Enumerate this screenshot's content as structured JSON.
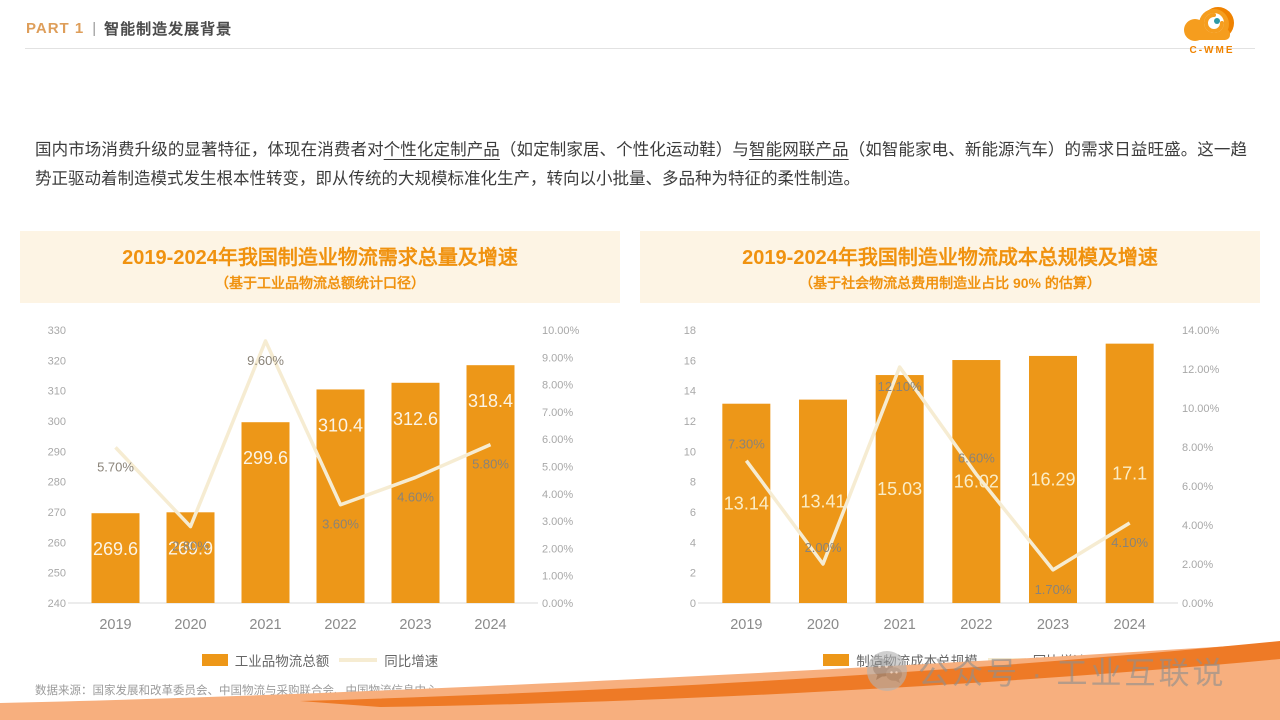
{
  "header": {
    "part_label": "PART 1",
    "divider": "|",
    "title": "智能制造发展背景",
    "logo_text": "C-WME"
  },
  "intro": {
    "segments": [
      {
        "text": "国内市场消费升级的显著特征，体现在消费者对",
        "underline": false
      },
      {
        "text": "个性化定制产品",
        "underline": true
      },
      {
        "text": "（如定制家居、个性化运动鞋）与",
        "underline": false
      },
      {
        "text": "智能网联产品",
        "underline": true
      },
      {
        "text": "（如智能家电、新能源汽车）的需求日益旺盛。这一趋势正驱动着制造模式发生根本性转变，即从传统的大规模标准化生产，转向以小批量、多品种为特征的柔性制造。",
        "underline": false
      }
    ]
  },
  "chart_data": [
    {
      "type": "bar",
      "title": "2019-2024年我国制造业物流需求总量及增速",
      "subtitle": "（基于工业品物流总额统计口径）",
      "categories": [
        "2019",
        "2020",
        "2021",
        "2022",
        "2023",
        "2024"
      ],
      "series": [
        {
          "name": "工业品物流总额",
          "type": "bar",
          "axis": "left",
          "values": [
            269.6,
            269.9,
            299.6,
            310.4,
            312.6,
            318.4
          ]
        },
        {
          "name": "同比增速",
          "type": "line",
          "axis": "right",
          "values": [
            5.7,
            2.8,
            9.6,
            3.6,
            4.6,
            5.8
          ]
        }
      ],
      "y_left": {
        "min": 240,
        "max": 330,
        "step": 10
      },
      "y_right": {
        "min": 0,
        "max": 10,
        "step": 1,
        "format": "percent2"
      },
      "legend_position": "bottom",
      "grid": false,
      "bar_label_color": "#FBF4E6"
    },
    {
      "type": "bar",
      "title": "2019-2024年我国制造业物流成本总规模及增速",
      "subtitle": "（基于社会物流总费用制造业占比 90% 的估算）",
      "categories": [
        "2019",
        "2020",
        "2021",
        "2022",
        "2023",
        "2024"
      ],
      "series": [
        {
          "name": "制造物流成本总规模",
          "type": "bar",
          "axis": "left",
          "values": [
            13.14,
            13.41,
            15.03,
            16.02,
            16.29,
            17.1
          ]
        },
        {
          "name": "同比增速",
          "type": "line",
          "axis": "right",
          "values": [
            7.3,
            2.0,
            12.1,
            6.6,
            1.7,
            4.1
          ]
        }
      ],
      "y_left": {
        "min": 0,
        "max": 18,
        "step": 2
      },
      "y_right": {
        "min": 0,
        "max": 14,
        "step": 2,
        "format": "percent2"
      },
      "legend_position": "bottom",
      "grid": false,
      "bar_label_color": "#FBEDC6"
    }
  ],
  "footer": {
    "source": "数据来源：国家发展和改革委员会、中国物流与采购联合会、中国物流信息中心"
  },
  "watermark": {
    "icon": "wechat-icon",
    "text": "公众号 · 工业互联说"
  },
  "colors": {
    "bar": "#ED9718",
    "line": "#F6ECD2",
    "title_orange": "#F0920F",
    "title_bg": "#FDF4E4",
    "tick_gray": "#a8a8a8",
    "pct_label": "#8a8378",
    "wave_light": "#F7AF7E",
    "wave_dark": "#EE7A26"
  }
}
